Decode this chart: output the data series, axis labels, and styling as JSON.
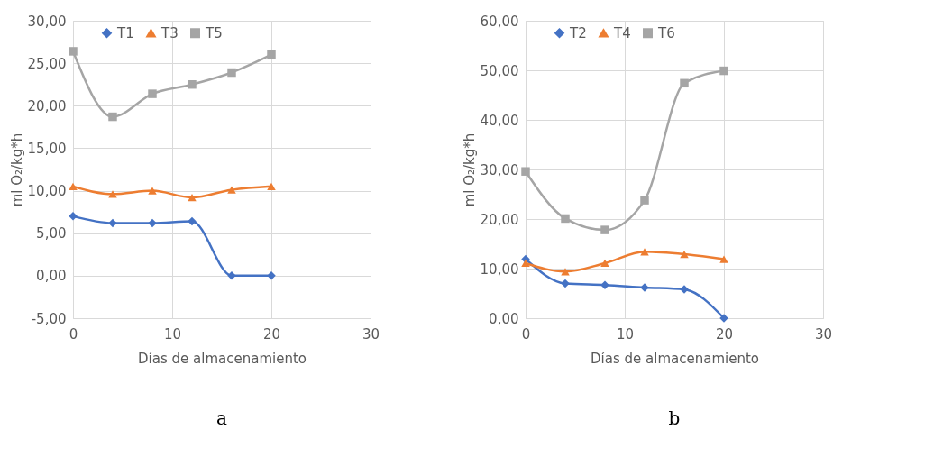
{
  "chart_data": [
    {
      "type": "line",
      "xlabel": "Días de almacenamiento",
      "ylabel": "ml O₂/kg*h",
      "annotations": [
        "a"
      ],
      "x": [
        0,
        4,
        8,
        12,
        16,
        20
      ],
      "series": [
        {
          "name": "T1",
          "color": "#4472c4",
          "marker": "diamond",
          "values": [
            7.0,
            6.2,
            6.2,
            6.4,
            0.0,
            0.0
          ]
        },
        {
          "name": "T3",
          "color": "#ed7d31",
          "marker": "triangle",
          "values": [
            10.5,
            9.6,
            10.0,
            9.2,
            10.1,
            10.5
          ]
        },
        {
          "name": "T5",
          "color": "#a5a5a5",
          "marker": "square",
          "values": [
            26.4,
            18.7,
            21.4,
            22.5,
            23.9,
            26.0
          ]
        }
      ],
      "xlim": [
        0,
        30
      ],
      "xticks": [
        0,
        10,
        20,
        30
      ],
      "ylim": [
        -5,
        30
      ],
      "yticks": [
        {
          "value": -5,
          "label": "-5,00"
        },
        {
          "value": 0,
          "label": "0,00"
        },
        {
          "value": 5,
          "label": "5,00"
        },
        {
          "value": 10,
          "label": "10,00"
        },
        {
          "value": 15,
          "label": "15,00"
        },
        {
          "value": 20,
          "label": "20,00"
        },
        {
          "value": 25,
          "label": "25,00"
        },
        {
          "value": 30,
          "label": "30,00"
        }
      ],
      "grid": true,
      "legend": "top",
      "line_style": "solid"
    },
    {
      "type": "line",
      "xlabel": "Días de almacenamiento",
      "ylabel": "ml O₂/kg*h",
      "annotations": [
        "b"
      ],
      "x": [
        0,
        4,
        8,
        12,
        16,
        20
      ],
      "series": [
        {
          "name": "T2",
          "color": "#4472c4",
          "marker": "diamond",
          "values": [
            11.9,
            7.0,
            6.7,
            6.2,
            5.8,
            0.0
          ]
        },
        {
          "name": "T4",
          "color": "#ed7d31",
          "marker": "triangle",
          "values": [
            11.1,
            9.4,
            11.1,
            13.4,
            12.9,
            11.9
          ]
        },
        {
          "name": "T6",
          "color": "#a5a5a5",
          "marker": "square",
          "values": [
            29.6,
            20.1,
            17.8,
            23.8,
            47.4,
            49.9
          ]
        }
      ],
      "xlim": [
        0,
        30
      ],
      "xticks": [
        0,
        10,
        20,
        30
      ],
      "ylim": [
        0,
        60
      ],
      "yticks": [
        {
          "value": 0,
          "label": "0,00"
        },
        {
          "value": 10,
          "label": "10,00"
        },
        {
          "value": 20,
          "label": "20,00"
        },
        {
          "value": 30,
          "label": "30,00"
        },
        {
          "value": 40,
          "label": "40,00"
        },
        {
          "value": 50,
          "label": "50,00"
        },
        {
          "value": 60,
          "label": "60,00"
        }
      ],
      "grid": true,
      "legend": "top",
      "line_style": "solid"
    }
  ]
}
